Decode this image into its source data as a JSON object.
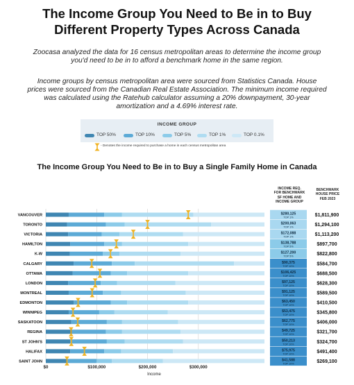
{
  "title_line1": "The Income Group You Need to Be in to Buy",
  "title_line2": "Different Property Types Across Canada",
  "intro_line1": "Zoocasa analyzed the data for 16 census metropolitan areas to determine the income group",
  "intro_line2": "you'd need to be in to afford a benchmark home in the same region.",
  "method_line1": "Income groups by census metropolitan area were sourced from Statistics Canada. House",
  "method_line2": "prices were sourced from the Canadian Real Estate Association. The minimum income required",
  "method_line3": "was calculated using the Ratehub calculator assuming a 20% downpayment, 30-year",
  "method_line4": "amortization and a 4.69% interest rate.",
  "legend": {
    "title": "INCOME GROUP",
    "items": [
      {
        "label": "TOP 50%",
        "color": "#3f86b2"
      },
      {
        "label": "TOP 10%",
        "color": "#5caad6"
      },
      {
        "label": "TOP 5%",
        "color": "#8ccbe9"
      },
      {
        "label": "TOP 1%",
        "color": "#afdcf1"
      },
      {
        "label": "TOP 0.1%",
        "color": "#cde8f6"
      }
    ]
  },
  "marker_note": "- Denotes the income required to purchase a home in each census metropolitan area",
  "subtitle": "The Income Group You Need to Be in to Buy a Single Family Home in Canada",
  "col_income": [
    "INCOME REQ.",
    "FOR BENCHMARK",
    "SF HOME AND",
    "INCOME GROUP"
  ],
  "col_price": [
    "BENCHMARK",
    "HOUSE PRICE",
    "FEB 2023"
  ],
  "colors": {
    "marker": "#f0b323",
    "income_cell": "#3b8fcb",
    "income_cell_alt": "#a9d8f0"
  },
  "chart_data": {
    "type": "bar",
    "xlabel": "Income",
    "xlim": [
      0,
      430000
    ],
    "xticks": [
      0,
      100000,
      200000,
      300000
    ],
    "xtick_labels": [
      "$0",
      "$100,000",
      "$200,000",
      "$300,000"
    ],
    "series_names": [
      "TOP 50%",
      "TOP 10%",
      "TOP 5%",
      "TOP 1%",
      "TOP 0.1%"
    ],
    "rows": [
      {
        "city": "VANCOUVER",
        "income": 280125,
        "income_label": "$280,125",
        "group": "TOP 1%",
        "price": "$1,811,900",
        "bounds": [
          45000,
          115000,
          150000,
          290000,
          430000
        ]
      },
      {
        "city": "TORONTO",
        "income": 200063,
        "income_label": "$200,063",
        "group": "TOP 1%",
        "price": "$1,294,100",
        "bounds": [
          42000,
          118000,
          155000,
          325000,
          430000
        ]
      },
      {
        "city": "VICTORIA",
        "income": 172088,
        "income_label": "$172,088",
        "group": "TOP 1%",
        "price": "$1,113,200",
        "bounds": [
          44000,
          110000,
          145000,
          270000,
          430000
        ]
      },
      {
        "city": "HAMILTON",
        "income": 138788,
        "income_label": "$138,788",
        "group": "TOP 5%",
        "price": "$897,700",
        "bounds": [
          48000,
          115000,
          150000,
          280000,
          430000
        ]
      },
      {
        "city": "K-W",
        "income": 127200,
        "income_label": "$127,200",
        "group": "TOP 5%",
        "price": "$822,800",
        "bounds": [
          47000,
          112000,
          145000,
          265000,
          430000
        ]
      },
      {
        "city": "CALGARY",
        "income": 90375,
        "income_label": "$90,375",
        "group": "TOP 10%",
        "price": "$584,700",
        "bounds": [
          55000,
          130000,
          175000,
          370000,
          430000
        ]
      },
      {
        "city": "OTTAWA",
        "income": 106425,
        "income_label": "$106,425",
        "group": "TOP 10%",
        "price": "$688,500",
        "bounds": [
          53000,
          128000,
          160000,
          280000,
          430000
        ]
      },
      {
        "city": "LONDON",
        "income": 97125,
        "income_label": "$97,125",
        "group": "TOP 10%",
        "price": "$628,300",
        "bounds": [
          44000,
          108000,
          140000,
          255000,
          430000
        ]
      },
      {
        "city": "MONTREAL",
        "income": 91125,
        "income_label": "$91,125",
        "group": "TOP 10%",
        "price": "$589,500",
        "bounds": [
          45000,
          112000,
          148000,
          275000,
          430000
        ]
      },
      {
        "city": "EDMONTON",
        "income": 63450,
        "income_label": "$63,450",
        "group": "TOP 10%",
        "price": "$410,500",
        "bounds": [
          55000,
          128000,
          160000,
          280000,
          430000
        ]
      },
      {
        "city": "WINNIPEG",
        "income": 53475,
        "income_label": "$53,475",
        "group": "TOP 10%",
        "price": "$345,800",
        "bounds": [
          45000,
          105000,
          135000,
          240000,
          430000
        ]
      },
      {
        "city": "SASKATOON",
        "income": 62775,
        "income_label": "$62,775",
        "group": "TOP 10%",
        "price": "$406,000",
        "bounds": [
          50000,
          120000,
          150000,
          260000,
          430000
        ]
      },
      {
        "city": "REGINA",
        "income": 49725,
        "income_label": "$49,725",
        "group": "TOP 10%",
        "price": "$321,700",
        "bounds": [
          52000,
          118000,
          150000,
          265000,
          430000
        ]
      },
      {
        "city": "ST JOHN'S",
        "income": 50213,
        "income_label": "$50,213",
        "group": "TOP 10%",
        "price": "$324,700",
        "bounds": [
          48000,
          120000,
          155000,
          270000,
          430000
        ]
      },
      {
        "city": "HALIFAX",
        "income": 75975,
        "income_label": "$75,975",
        "group": "TOP 10%",
        "price": "$491,400",
        "bounds": [
          48000,
          115000,
          148000,
          250000,
          430000
        ]
      },
      {
        "city": "SAINT JOHN",
        "income": 41588,
        "income_label": "$41,588",
        "group": "TOP 10%",
        "price": "$269,100",
        "bounds": [
          42000,
          100000,
          130000,
          230000,
          430000
        ]
      }
    ]
  }
}
